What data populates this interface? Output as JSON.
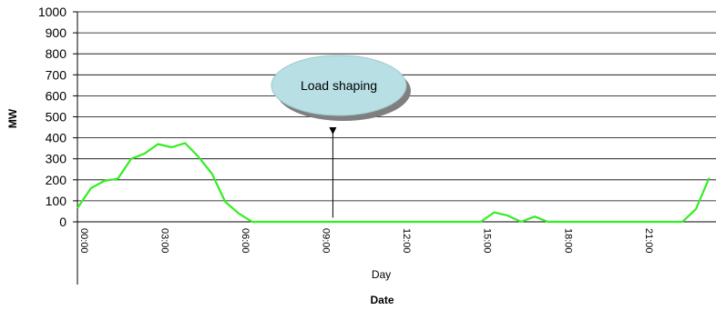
{
  "chart_data": {
    "type": "line",
    "title": "",
    "ylabel": "MW",
    "xlabel": "Date",
    "x_sublabel": "Day",
    "ylim": [
      0,
      1000
    ],
    "yticks": [
      0,
      100,
      200,
      300,
      400,
      500,
      600,
      700,
      800,
      900,
      1000
    ],
    "xlim": [
      0,
      23.75
    ],
    "xticks": [
      {
        "label": "00:00",
        "x": 0
      },
      {
        "label": "03:00",
        "x": 3
      },
      {
        "label": "06:00",
        "x": 6
      },
      {
        "label": "09:00",
        "x": 9
      },
      {
        "label": "12:00",
        "x": 12
      },
      {
        "label": "15:00",
        "x": 15
      },
      {
        "label": "18:00",
        "x": 18
      },
      {
        "label": "21:00",
        "x": 21
      }
    ],
    "grid": true,
    "series": [
      {
        "color": "#33ee22",
        "points": [
          [
            0,
            65
          ],
          [
            0.5,
            160
          ],
          [
            1,
            195
          ],
          [
            1.5,
            205
          ],
          [
            2,
            300
          ],
          [
            2.5,
            325
          ],
          [
            3,
            370
          ],
          [
            3.5,
            355
          ],
          [
            4,
            375
          ],
          [
            4.5,
            310
          ],
          [
            5,
            230
          ],
          [
            5.5,
            95
          ],
          [
            6,
            40
          ],
          [
            6.5,
            0
          ],
          [
            15,
            0
          ],
          [
            15.5,
            45
          ],
          [
            16,
            30
          ],
          [
            16.5,
            0
          ],
          [
            17,
            25
          ],
          [
            17.5,
            0
          ],
          [
            22.5,
            0
          ],
          [
            23,
            60
          ],
          [
            23.5,
            210
          ]
        ]
      }
    ],
    "annotation": {
      "text": "Load shaping",
      "arrow_x": 9.5,
      "arrow_from_y": 20,
      "arrow_to_y": 450
    }
  }
}
